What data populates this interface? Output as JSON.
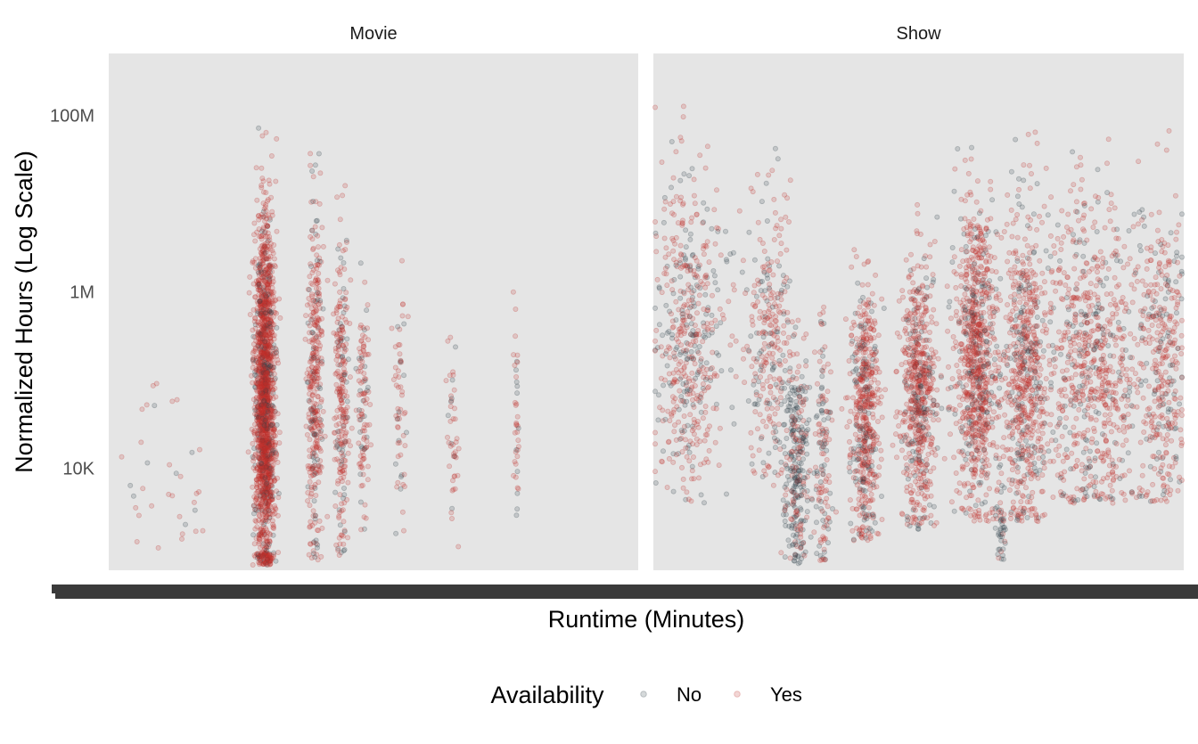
{
  "chart_data": {
    "type": "scatter",
    "ylabel": "Normalized Hours (Log Scale)",
    "xlabel": "Runtime (Minutes)",
    "y_scale": "log10",
    "ylim": [
      700,
      500000000
    ],
    "y_ticks": [
      {
        "value": 10000,
        "label": "10K"
      },
      {
        "value": 1000000,
        "label": "1M"
      },
      {
        "value": 100000000,
        "label": "100M"
      }
    ],
    "x_tick_labels_overplotted": true,
    "grid": false,
    "panel_background": "#e5e5e5",
    "legend": {
      "title": "Availability",
      "position": "bottom",
      "entries": [
        {
          "label": "No",
          "color": "#2e3f47"
        },
        {
          "label": "Yes",
          "color": "#c0302c"
        }
      ]
    },
    "facets": [
      {
        "label": "Movie",
        "xlim": [
          0,
          100
        ],
        "clusters": [
          {
            "x": 29.5,
            "x_spread": 1.7,
            "y_min": 800,
            "y_max": 120000000,
            "n": 1900,
            "yes_share": 0.85,
            "median": 60000
          },
          {
            "x": 39,
            "x_spread": 1.3,
            "y_min": 900,
            "y_max": 40000000,
            "n": 380,
            "yes_share": 0.82,
            "median": 90000
          },
          {
            "x": 44,
            "x_spread": 1.3,
            "y_min": 1000,
            "y_max": 20000000,
            "n": 260,
            "yes_share": 0.82,
            "median": 60000
          },
          {
            "x": 48,
            "x_spread": 1.0,
            "y_min": 2000,
            "y_max": 8000000,
            "n": 110,
            "yes_share": 0.8,
            "median": 60000
          },
          {
            "x": 55,
            "x_spread": 1.2,
            "y_min": 1000,
            "y_max": 3000000,
            "n": 60,
            "yes_share": 0.8,
            "median": 40000
          },
          {
            "x": 65,
            "x_spread": 1.0,
            "y_min": 1200,
            "y_max": 600000,
            "n": 45,
            "yes_share": 0.8,
            "median": 20000
          },
          {
            "x": 77,
            "x_spread": 0.5,
            "y_min": 1300,
            "y_max": 1800000,
            "n": 40,
            "yes_share": 0.8,
            "median": 30000
          },
          {
            "x": 7,
            "x_spread": 5.0,
            "y_min": 1000,
            "y_max": 2000000,
            "n": 20,
            "yes_share": 0.75,
            "median": 10000
          },
          {
            "x": 15,
            "x_spread": 3.0,
            "y_min": 1000,
            "y_max": 100000,
            "n": 15,
            "yes_share": 0.8,
            "median": 8000
          }
        ]
      },
      {
        "label": "Show",
        "xlim": [
          0,
          100
        ],
        "clusters": [
          {
            "x": 7,
            "x_spread": 6.0,
            "y_min": 4000,
            "y_max": 200000000,
            "n": 500,
            "yes_share": 0.65,
            "median": 300000
          },
          {
            "x": 22,
            "x_spread": 4.0,
            "y_min": 8000,
            "y_max": 100000000,
            "n": 280,
            "yes_share": 0.7,
            "median": 300000
          },
          {
            "x": 27,
            "x_spread": 2.2,
            "y_min": 800,
            "y_max": 1000000,
            "n": 320,
            "yes_share": 0.3,
            "median": 10000
          },
          {
            "x": 32,
            "x_spread": 1.4,
            "y_min": 800,
            "y_max": 2000000,
            "n": 140,
            "yes_share": 0.55,
            "median": 15000
          },
          {
            "x": 40,
            "x_spread": 2.5,
            "y_min": 1500,
            "y_max": 10000000,
            "n": 550,
            "yes_share": 0.8,
            "median": 40000
          },
          {
            "x": 50,
            "x_spread": 3.0,
            "y_min": 2000,
            "y_max": 10000000,
            "n": 650,
            "yes_share": 0.78,
            "median": 60000
          },
          {
            "x": 61,
            "x_spread": 3.5,
            "y_min": 2500,
            "y_max": 50000000,
            "n": 900,
            "yes_share": 0.8,
            "median": 150000
          },
          {
            "x": 65.5,
            "x_spread": 0.9,
            "y_min": 900,
            "y_max": 20000,
            "n": 40,
            "yes_share": 0.2,
            "median": 2000
          },
          {
            "x": 70,
            "x_spread": 4.0,
            "y_min": 2500,
            "y_max": 100000000,
            "n": 650,
            "yes_share": 0.78,
            "median": 100000
          },
          {
            "x": 83,
            "x_spread": 9.0,
            "y_min": 4000,
            "y_max": 200000000,
            "n": 800,
            "yes_share": 0.78,
            "median": 150000
          },
          {
            "x": 96,
            "x_spread": 4.0,
            "y_min": 4000,
            "y_max": 100000000,
            "n": 350,
            "yes_share": 0.75,
            "median": 150000
          }
        ]
      }
    ]
  }
}
